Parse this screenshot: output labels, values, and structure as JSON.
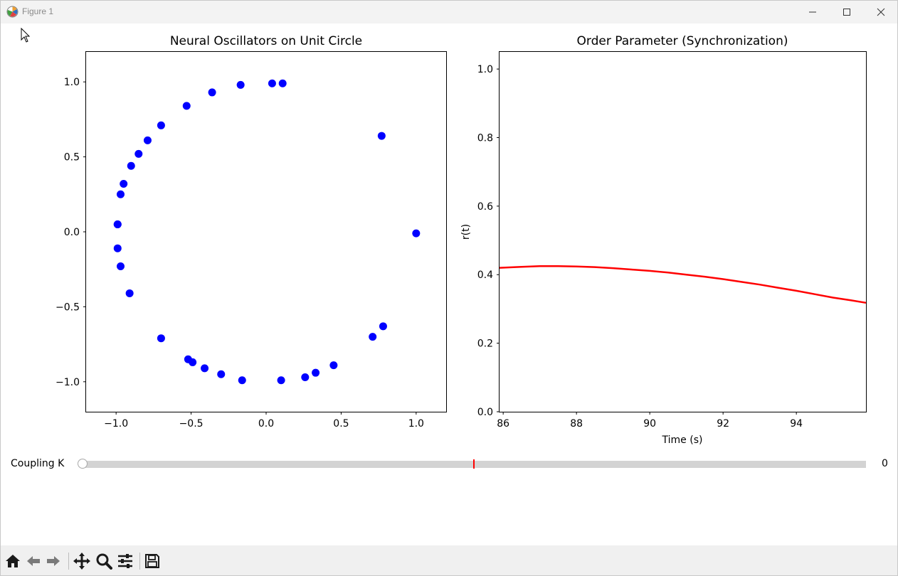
{
  "window": {
    "title": "Figure 1",
    "controls": [
      "minimize-icon",
      "maximize-icon",
      "close-icon"
    ]
  },
  "plots": {
    "left": {
      "title": "Neural Oscillators on Unit Circle",
      "x_tick_labels": [
        "−1.0",
        "−0.5",
        "0.0",
        "0.5",
        "1.0"
      ],
      "y_tick_labels": [
        "1.0",
        "0.5",
        "0.0",
        "−0.5",
        "−1.0"
      ]
    },
    "right": {
      "title": "Order Parameter (Synchronization)",
      "xlabel": "Time (s)",
      "ylabel": "r(t)",
      "x_tick_labels": [
        "86",
        "88",
        "90",
        "92",
        "94"
      ],
      "y_tick_labels": [
        "1.0",
        "0.8",
        "0.6",
        "0.4",
        "0.2",
        "0.0"
      ]
    }
  },
  "slider": {
    "label": "Coupling K",
    "value_text": "0",
    "value": 0,
    "valinit_fraction": 0.5
  },
  "toolbar": {
    "tools": [
      "home-icon",
      "back-icon",
      "forward-icon",
      "pan-icon",
      "zoom-icon",
      "configure-icon",
      "save-icon"
    ]
  },
  "colors": {
    "points": "#0000ff",
    "line": "#ff0000",
    "slider_marker": "#ff0000",
    "track": "#d3d3d3"
  },
  "chart_data": [
    {
      "type": "scatter",
      "title": "Neural Oscillators on Unit Circle",
      "xlim": [
        -1.2,
        1.2
      ],
      "ylim": [
        -1.2,
        1.2
      ],
      "xticks": [
        -1.0,
        -0.5,
        0.0,
        0.5,
        1.0
      ],
      "yticks": [
        -1.0,
        -0.5,
        0.0,
        0.5,
        1.0
      ],
      "grid": false,
      "points": [
        {
          "x": 0.04,
          "y": 0.99
        },
        {
          "x": 0.11,
          "y": 0.99
        },
        {
          "x": -0.17,
          "y": 0.98
        },
        {
          "x": -0.36,
          "y": 0.93
        },
        {
          "x": -0.53,
          "y": 0.84
        },
        {
          "x": -0.7,
          "y": 0.71
        },
        {
          "x": -0.79,
          "y": 0.61
        },
        {
          "x": -0.85,
          "y": 0.52
        },
        {
          "x": -0.9,
          "y": 0.44
        },
        {
          "x": -0.95,
          "y": 0.32
        },
        {
          "x": -0.97,
          "y": 0.25
        },
        {
          "x": -0.99,
          "y": 0.05
        },
        {
          "x": -0.99,
          "y": 0.05
        },
        {
          "x": -0.99,
          "y": -0.11
        },
        {
          "x": -0.97,
          "y": -0.23
        },
        {
          "x": -0.91,
          "y": -0.41
        },
        {
          "x": -0.7,
          "y": -0.71
        },
        {
          "x": -0.52,
          "y": -0.85
        },
        {
          "x": -0.49,
          "y": -0.87
        },
        {
          "x": -0.41,
          "y": -0.91
        },
        {
          "x": -0.3,
          "y": -0.95
        },
        {
          "x": -0.16,
          "y": -0.99
        },
        {
          "x": 0.1,
          "y": -0.99
        },
        {
          "x": 0.26,
          "y": -0.97
        },
        {
          "x": 0.33,
          "y": -0.94
        },
        {
          "x": 0.45,
          "y": -0.89
        },
        {
          "x": 0.71,
          "y": -0.7
        },
        {
          "x": 0.78,
          "y": -0.63
        },
        {
          "x": 1.0,
          "y": -0.01
        },
        {
          "x": 0.77,
          "y": 0.64
        }
      ]
    },
    {
      "type": "line",
      "title": "Order Parameter (Synchronization)",
      "xlabel": "Time (s)",
      "ylabel": "r(t)",
      "xlim": [
        85.9,
        95.9
      ],
      "ylim": [
        0.0,
        1.05
      ],
      "xticks": [
        86,
        88,
        90,
        92,
        94
      ],
      "yticks": [
        0.0,
        0.2,
        0.4,
        0.6,
        0.8,
        1.0
      ],
      "grid": false,
      "series": [
        {
          "x": [
            85.9,
            86.5,
            87.0,
            87.5,
            88.0,
            88.5,
            89.0,
            89.5,
            90.0,
            90.5,
            91.0,
            91.5,
            92.0,
            92.5,
            93.0,
            93.5,
            94.0,
            94.5,
            95.0,
            95.5,
            95.9
          ],
          "values": [
            0.42,
            0.423,
            0.425,
            0.425,
            0.424,
            0.422,
            0.419,
            0.415,
            0.411,
            0.406,
            0.4,
            0.394,
            0.387,
            0.379,
            0.371,
            0.362,
            0.353,
            0.343,
            0.333,
            0.325,
            0.318
          ]
        }
      ]
    }
  ]
}
